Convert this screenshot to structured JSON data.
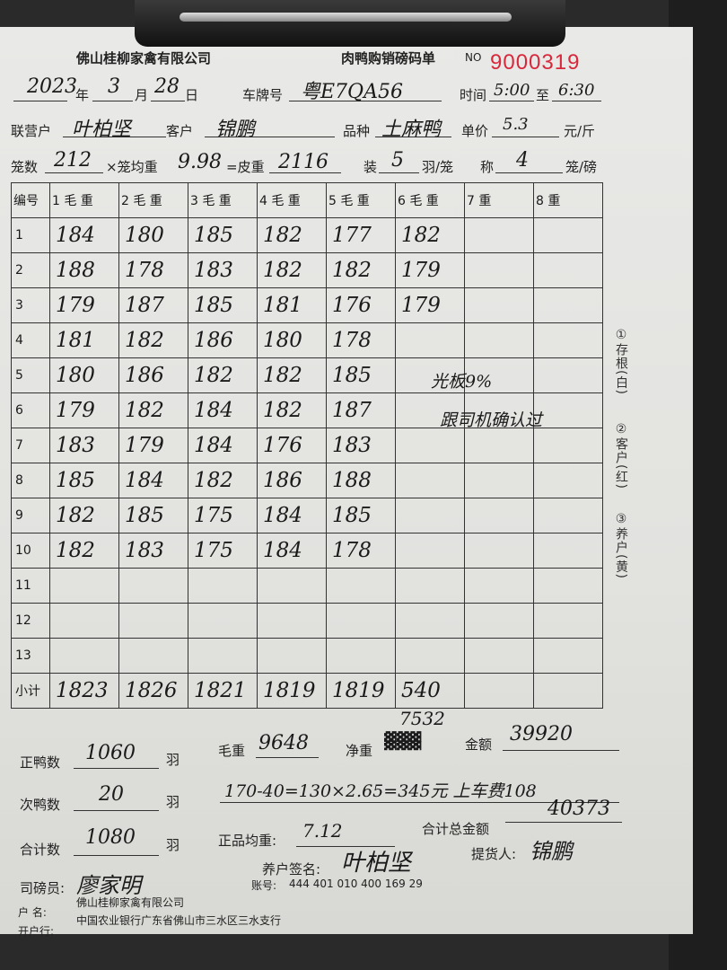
{
  "header": {
    "company": "佛山桂柳家禽有限公司",
    "form_title": "肉鸭购销磅码单",
    "no_label": "NO",
    "serial": "9000319",
    "serial_color": "#d8283c"
  },
  "fields": {
    "year": "2023",
    "year_label": "年",
    "month": "3",
    "month_label": "月",
    "day": "28",
    "day_label": "日",
    "plate_label": "车牌号",
    "plate": "粤E7QA56",
    "time_label": "时间",
    "time_from": "5:00",
    "to_label": "至",
    "time_to": "6:30",
    "partner_label": "联营户",
    "partner": "叶柏坚",
    "customer_label": "客户",
    "customer": "锦鹏",
    "variety_label": "品种",
    "variety": "土麻鸭",
    "price_label": "单价",
    "price": "5.3",
    "price_unit": "元/斤",
    "cages_label": "笼数",
    "cages": "212",
    "avg_label": "×笼均重",
    "avg": "9.98",
    "tare_label": "=皮重",
    "tare": "2116",
    "pack_label": "装",
    "pack": "5",
    "pack_unit": "羽/笼",
    "weigh_label": "称",
    "weigh": "4",
    "weigh_unit": "笼/磅"
  },
  "table": {
    "headers": [
      "编号",
      "1 毛 重",
      "2 毛 重",
      "3 毛 重",
      "4 毛 重",
      "5 毛 重",
      "6 毛 重",
      "7 重",
      "8 重"
    ],
    "rows": [
      [
        "1",
        "184",
        "180",
        "185",
        "182",
        "177",
        "182",
        "",
        ""
      ],
      [
        "2",
        "188",
        "178",
        "183",
        "182",
        "182",
        "179",
        "",
        ""
      ],
      [
        "3",
        "179",
        "187",
        "185",
        "181",
        "176",
        "179",
        "",
        ""
      ],
      [
        "4",
        "181",
        "182",
        "186",
        "180",
        "178",
        "",
        "",
        ""
      ],
      [
        "5",
        "180",
        "186",
        "182",
        "182",
        "185",
        "",
        "",
        ""
      ],
      [
        "6",
        "179",
        "182",
        "184",
        "182",
        "187",
        "",
        "",
        ""
      ],
      [
        "7",
        "183",
        "179",
        "184",
        "176",
        "183",
        "",
        "",
        ""
      ],
      [
        "8",
        "185",
        "184",
        "182",
        "186",
        "188",
        "",
        "",
        ""
      ],
      [
        "9",
        "182",
        "185",
        "175",
        "184",
        "185",
        "",
        "",
        ""
      ],
      [
        "10",
        "182",
        "183",
        "175",
        "184",
        "178",
        "",
        "",
        ""
      ],
      [
        "11",
        "",
        "",
        "",
        "",
        "",
        "",
        "",
        ""
      ],
      [
        "12",
        "",
        "",
        "",
        "",
        "",
        "",
        "",
        ""
      ],
      [
        "13",
        "",
        "",
        "",
        "",
        "",
        "",
        "",
        ""
      ],
      [
        "小计",
        "1823",
        "1826",
        "1821",
        "1819",
        "1819",
        "540",
        "",
        ""
      ]
    ],
    "notes": [
      "光板9%",
      "跟司机确认过"
    ]
  },
  "side_labels": [
    "①存根(白)",
    "②客户(红)",
    "③养户(黄)"
  ],
  "summary": {
    "good_label": "正鸭数",
    "good": "1060",
    "unit": "羽",
    "second_label": "次鸭数",
    "second": "20",
    "total_label": "合计数",
    "total": "1080",
    "gross_label": "毛重",
    "gross": "9648",
    "net_label": "净重",
    "net": "7532",
    "amount_label": "金额",
    "amount": "39920",
    "calc": "170-40=130×2.65=345元 上车费108",
    "avg_label": "正品均重:",
    "avg": "7.12",
    "grand_label": "合计总金额",
    "grand": "40373",
    "farmer_sign_label": "养户签名:",
    "farmer_sign": "叶柏坚",
    "pickup_label": "提货人:",
    "pickup": "锦鹏",
    "weigher_label": "司磅员:",
    "weigher": "廖家明"
  },
  "bank": {
    "account_label": "账号:",
    "account": "444 401 010 400 169 29",
    "name_label": "户  名:",
    "name": "佛山桂柳家禽有限公司",
    "bank_label": "开户行:",
    "bank": "中国农业银行广东省佛山市三水区三水支行"
  }
}
